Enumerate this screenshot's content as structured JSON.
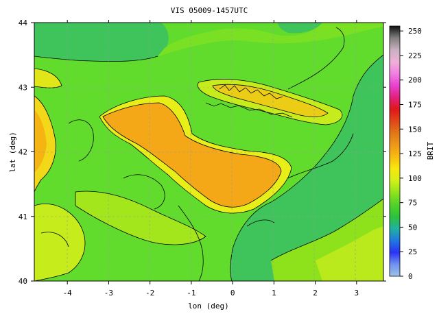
{
  "chart_data": {
    "type": "heatmap",
    "title": "VIS 05009-1457UTC",
    "xlabel": "lon (deg)",
    "ylabel": "lat (deg)",
    "xlim": [
      -4.8,
      3.65
    ],
    "ylim": [
      40,
      44
    ],
    "x_ticks": [
      -4,
      -3,
      -2,
      -1,
      0,
      1,
      2,
      3
    ],
    "y_ticks": [
      40,
      41,
      42,
      43,
      44
    ],
    "grid": true,
    "colorbar": {
      "label": "BRIT",
      "range": [
        0,
        255
      ],
      "ticks": [
        0,
        25,
        50,
        75,
        100,
        125,
        150,
        175,
        200,
        225,
        250
      ],
      "colors": [
        "#9fc3e8",
        "#6f90f0",
        "#2a32f5",
        "#1f78e0",
        "#22b0a0",
        "#2cc23a",
        "#52d22a",
        "#8ee21c",
        "#d2ef18",
        "#f7e80e",
        "#f7be10",
        "#f09818",
        "#e07818",
        "#e04818",
        "#e01818",
        "#e0207a",
        "#e840d0",
        "#f080e0",
        "#f0b0d8",
        "#c8b0c0",
        "#808080",
        "#101010"
      ]
    },
    "legend_placement": "right"
  }
}
